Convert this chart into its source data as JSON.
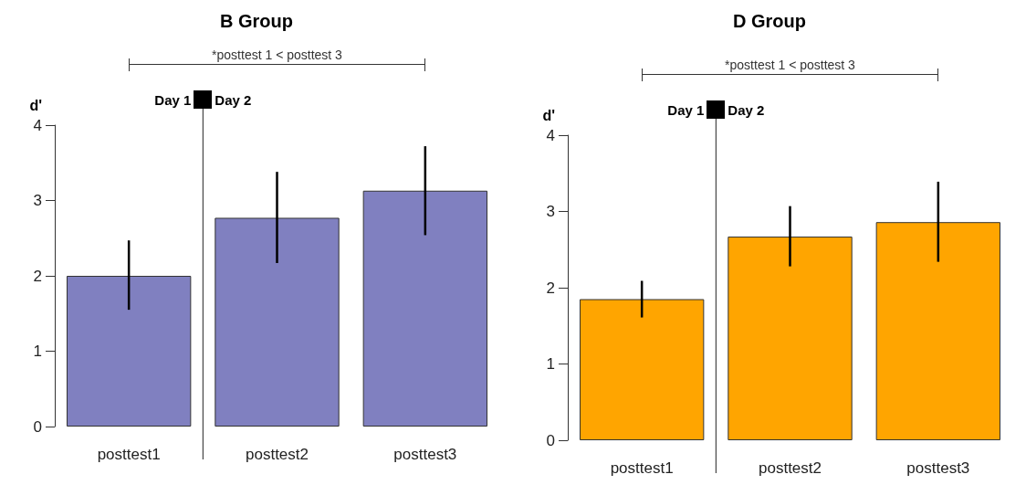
{
  "chart_data": [
    {
      "type": "bar",
      "title": "B Group",
      "ylabel": "d'",
      "categories": [
        "posttest1",
        "posttest2",
        "posttest3"
      ],
      "values": [
        2.0,
        2.77,
        3.13
      ],
      "color": "#8080c0",
      "errors": [
        [
          1.55,
          2.47
        ],
        [
          2.17,
          3.38
        ],
        [
          2.54,
          3.72
        ]
      ],
      "ylim": [
        0,
        4
      ],
      "yticks": [
        0,
        1,
        2,
        3,
        4
      ],
      "grid": false,
      "annotations": [
        "*posttest 1 < posttest 3",
        "Day 1",
        "Day 2"
      ]
    },
    {
      "type": "bar",
      "title": "D Group",
      "ylabel": "d'",
      "categories": [
        "posttest1",
        "posttest2",
        "posttest3"
      ],
      "values": [
        1.85,
        2.67,
        2.86
      ],
      "color": "#ffa500",
      "errors": [
        [
          1.61,
          2.09
        ],
        [
          2.28,
          3.07
        ],
        [
          2.34,
          3.39
        ]
      ],
      "ylim": [
        0,
        4
      ],
      "yticks": [
        0,
        1,
        2,
        3,
        4
      ],
      "grid": false,
      "annotations": [
        "*posttest 1 < posttest 3",
        "Day 1",
        "Day 2"
      ]
    }
  ]
}
